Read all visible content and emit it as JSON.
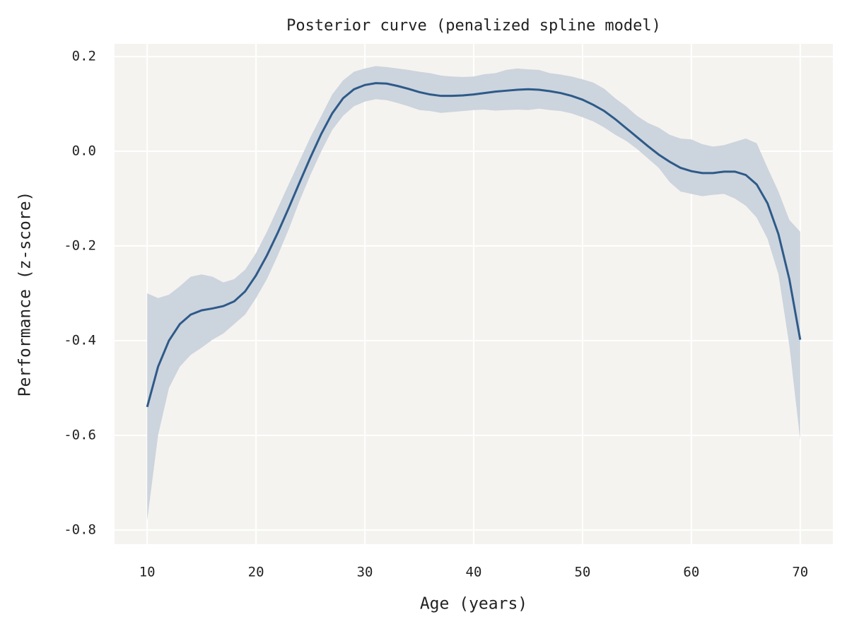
{
  "chart_data": {
    "type": "line",
    "title": "Posterior curve (penalized spline model)",
    "x_label": "Age (years)",
    "y_label": "Performance (z-score)",
    "x": [
      10,
      11,
      12,
      13,
      14,
      15,
      16,
      17,
      18,
      19,
      20,
      21,
      22,
      23,
      24,
      25,
      26,
      27,
      28,
      29,
      30,
      31,
      32,
      33,
      34,
      35,
      36,
      37,
      38,
      39,
      40,
      41,
      42,
      43,
      44,
      45,
      46,
      47,
      48,
      49,
      50,
      51,
      52,
      53,
      54,
      55,
      56,
      57,
      58,
      59,
      60,
      61,
      62,
      63,
      64,
      65,
      66,
      67,
      68,
      69,
      70
    ],
    "values": [
      -0.54,
      -0.455,
      -0.4,
      -0.365,
      -0.345,
      -0.336,
      -0.332,
      -0.327,
      -0.317,
      -0.296,
      -0.262,
      -0.22,
      -0.172,
      -0.12,
      -0.066,
      -0.013,
      0.037,
      0.08,
      0.112,
      0.131,
      0.14,
      0.144,
      0.143,
      0.138,
      0.132,
      0.125,
      0.12,
      0.117,
      0.117,
      0.118,
      0.12,
      0.123,
      0.126,
      0.128,
      0.13,
      0.131,
      0.13,
      0.127,
      0.123,
      0.117,
      0.109,
      0.098,
      0.085,
      0.068,
      0.049,
      0.03,
      0.011,
      -0.007,
      -0.022,
      -0.035,
      -0.042,
      -0.046,
      -0.046,
      -0.043,
      -0.043,
      -0.05,
      -0.07,
      -0.11,
      -0.175,
      -0.27,
      -0.398
    ],
    "color": "#2e5a88",
    "band": {
      "color": "#ccd4de",
      "lower": [
        -0.78,
        -0.6,
        -0.5,
        -0.455,
        -0.43,
        -0.415,
        -0.398,
        -0.385,
        -0.365,
        -0.345,
        -0.31,
        -0.27,
        -0.22,
        -0.165,
        -0.105,
        -0.05,
        0.0,
        0.045,
        0.075,
        0.095,
        0.105,
        0.11,
        0.108,
        0.102,
        0.095,
        0.087,
        0.085,
        0.081,
        0.083,
        0.085,
        0.087,
        0.088,
        0.086,
        0.087,
        0.088,
        0.087,
        0.09,
        0.087,
        0.085,
        0.08,
        0.072,
        0.063,
        0.05,
        0.035,
        0.022,
        0.005,
        -0.015,
        -0.035,
        -0.065,
        -0.085,
        -0.09,
        -0.095,
        -0.092,
        -0.09,
        -0.1,
        -0.115,
        -0.14,
        -0.185,
        -0.26,
        -0.41,
        -0.61
      ],
      "upper": [
        -0.3,
        -0.31,
        -0.303,
        -0.285,
        -0.265,
        -0.26,
        -0.265,
        -0.277,
        -0.27,
        -0.25,
        -0.215,
        -0.17,
        -0.12,
        -0.07,
        -0.02,
        0.03,
        0.075,
        0.12,
        0.15,
        0.168,
        0.175,
        0.18,
        0.178,
        0.175,
        0.172,
        0.168,
        0.165,
        0.16,
        0.158,
        0.157,
        0.158,
        0.163,
        0.165,
        0.172,
        0.175,
        0.173,
        0.172,
        0.165,
        0.162,
        0.158,
        0.152,
        0.145,
        0.132,
        0.112,
        0.095,
        0.075,
        0.06,
        0.05,
        0.035,
        0.027,
        0.025,
        0.015,
        0.01,
        0.013,
        0.02,
        0.027,
        0.017,
        -0.035,
        -0.085,
        -0.145,
        -0.17
      ]
    },
    "xlim": [
      7,
      73
    ],
    "ylim": [
      -0.83,
      0.227
    ],
    "xticks": [
      10,
      20,
      30,
      40,
      50,
      60,
      70
    ],
    "yticks": [
      -0.8,
      -0.6,
      -0.4,
      -0.2,
      {
        "value": 0,
        "label": "0.0"
      },
      0.2
    ],
    "grid": true
  }
}
